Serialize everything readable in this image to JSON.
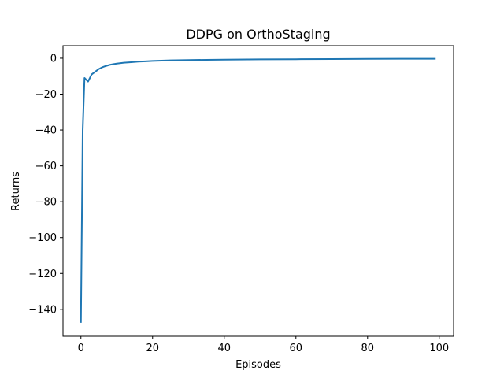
{
  "chart_data": {
    "type": "line",
    "title": "DDPG on OrthoStaging",
    "xlabel": "Episodes",
    "ylabel": "Returns",
    "xlim": [
      -5,
      104
    ],
    "ylim": [
      -155,
      7
    ],
    "xticks": [
      0,
      20,
      40,
      60,
      80,
      100
    ],
    "yticks": [
      0,
      -20,
      -40,
      -60,
      -80,
      -100,
      -120,
      -140
    ],
    "grid": false,
    "series": [
      {
        "color": "#1f77b4",
        "x": [
          0,
          0.5,
          1,
          2,
          3,
          4,
          5,
          6,
          7,
          8,
          9,
          10,
          12,
          14,
          16,
          18,
          20,
          25,
          30,
          35,
          40,
          50,
          60,
          70,
          80,
          90,
          99
        ],
        "y": [
          -147.5,
          -40,
          -11,
          -13,
          -9,
          -7.5,
          -6,
          -5,
          -4.3,
          -3.7,
          -3.3,
          -3,
          -2.5,
          -2.2,
          -1.9,
          -1.7,
          -1.5,
          -1.2,
          -1.0,
          -0.9,
          -0.8,
          -0.65,
          -0.55,
          -0.45,
          -0.38,
          -0.32,
          -0.28
        ]
      }
    ]
  }
}
